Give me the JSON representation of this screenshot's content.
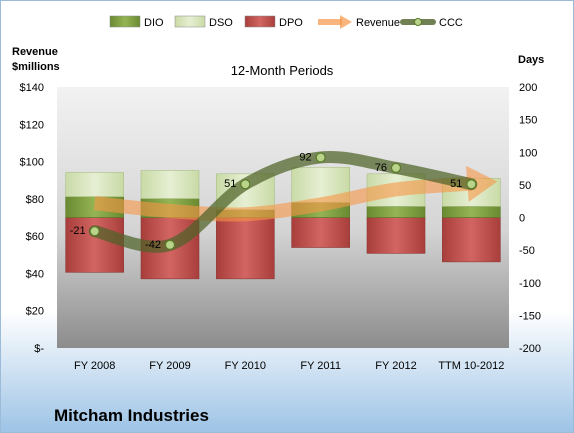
{
  "company_name": "Mitcham Industries",
  "colors": {
    "dio": "#77933C",
    "dso": "#D7E4BD",
    "dpo": "#C0504D",
    "revenue": "#F79646",
    "ccc": "#4F6228"
  },
  "chart_data": {
    "type": "bar",
    "title": "12-Month Periods",
    "ylabel_left": "Revenue $millions",
    "ylabel_right": "Days",
    "categories": [
      "FY 2008",
      "FY 2009",
      "FY 2010",
      "FY 2011",
      "FY 2012",
      "TTM 10-2012"
    ],
    "y_left": {
      "min": 0,
      "max": 140,
      "step": 20,
      "tick_labels": [
        "$-",
        "$20",
        "$40",
        "$60",
        "$80",
        "$100",
        "$120",
        "$140"
      ]
    },
    "y_right": {
      "min": -200,
      "max": 200,
      "step": 50,
      "tick_labels": [
        "-200",
        "-150",
        "-100",
        "-50",
        "0",
        "50",
        "100",
        "150",
        "200"
      ]
    },
    "legend": {
      "position": "top",
      "entries": [
        "DIO",
        "DSO",
        "DPO",
        "Revenue",
        "CCC"
      ]
    },
    "series": [
      {
        "name": "DIO",
        "kind": "stacked-bar",
        "values": [
          32,
          29,
          12,
          23,
          17,
          17
        ]
      },
      {
        "name": "DSO",
        "kind": "stacked-bar",
        "values": [
          37,
          43,
          55,
          54,
          50,
          43
        ]
      },
      {
        "name": "DPO",
        "kind": "negative-bar",
        "values": [
          -84,
          -94,
          -94,
          -46,
          -55,
          -68
        ]
      },
      {
        "name": "Revenue",
        "kind": "line-arrow",
        "values": [
          22,
          10,
          5,
          20,
          43,
          52
        ]
      },
      {
        "name": "CCC",
        "kind": "line",
        "values": [
          -21,
          -42,
          51,
          92,
          76,
          51
        ],
        "data_labels": [
          "-21",
          "-42",
          "51",
          "92",
          "76",
          "51"
        ]
      }
    ]
  }
}
